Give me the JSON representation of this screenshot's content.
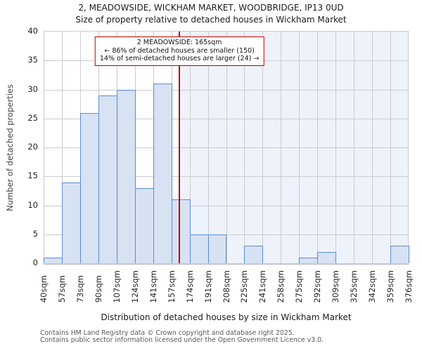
{
  "chart_data": {
    "type": "bar",
    "title": "2, MEADOWSIDE, WICKHAM MARKET, WOODBRIDGE, IP13 0UD",
    "subtitle": "Size of property relative to detached houses in Wickham Market",
    "xlabel": "Distribution of detached houses by size in Wickham Market",
    "ylabel": "Number of detached properties",
    "bin_edge_labels": [
      "40sqm",
      "57sqm",
      "73sqm",
      "90sqm",
      "107sqm",
      "124sqm",
      "141sqm",
      "157sqm",
      "174sqm",
      "191sqm",
      "208sqm",
      "225sqm",
      "241sqm",
      "258sqm",
      "275sqm",
      "292sqm",
      "309sqm",
      "325sqm",
      "342sqm",
      "359sqm",
      "376sqm"
    ],
    "bin_edges_sqm": [
      40,
      57,
      73,
      90,
      107,
      124,
      141,
      157,
      174,
      191,
      208,
      225,
      241,
      258,
      275,
      292,
      309,
      325,
      342,
      359,
      376
    ],
    "values": [
      1,
      14,
      26,
      29,
      30,
      13,
      31,
      11,
      5,
      5,
      0,
      3,
      0,
      0,
      1,
      2,
      0,
      0,
      0,
      3
    ],
    "yticks": [
      0,
      5,
      10,
      15,
      20,
      25,
      30,
      35,
      40
    ],
    "ylim": [
      0,
      40
    ],
    "x_range_sqm": [
      40,
      376
    ],
    "grid": true,
    "marker": {
      "value_sqm": 165,
      "label": "2 MEADOWSIDE: 165sqm"
    }
  },
  "annotation": {
    "line1": "2 MEADOWSIDE: 165sqm",
    "line2": "← 86% of detached houses are smaller (150)",
    "line3": "14% of semi-detached houses are larger (24) →"
  },
  "footer": {
    "line1": "Contains HM Land Registry data © Crown copyright and database right 2025.",
    "line2": "Contains public sector information licensed under the Open Government Licence v3.0."
  },
  "colors": {
    "bar_fill": "#d7e2f3",
    "bar_border": "#5b8cd1",
    "marker_line": "#bb0000",
    "annotation_border": "#bb0000",
    "shade_right_of_marker": "#eef2fb",
    "grid": "#cccccc",
    "axis_spine": "#b9bec7"
  }
}
